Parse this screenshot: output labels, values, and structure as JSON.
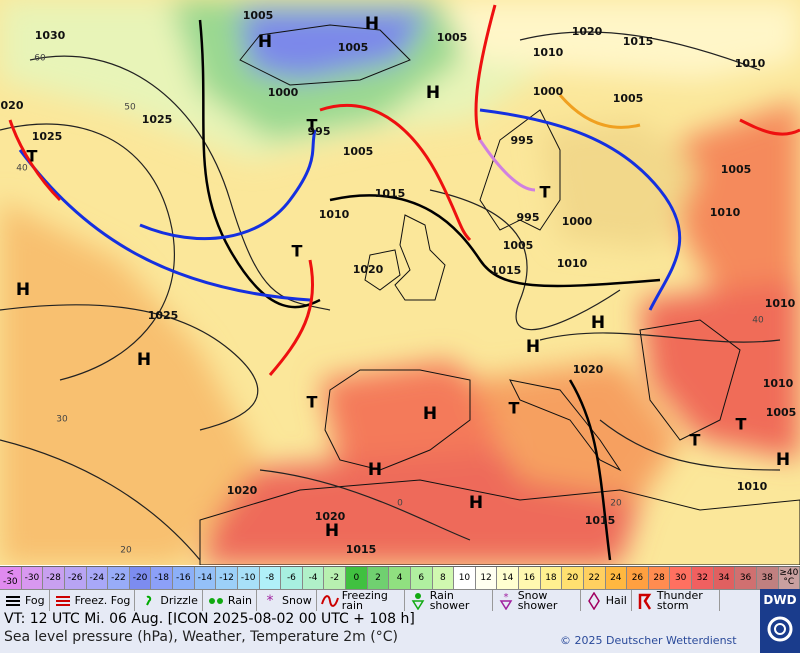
{
  "map": {
    "labels": [
      {
        "text": "1005",
        "kind": "iso"
      },
      {
        "text": "H",
        "kind": "hl"
      },
      {
        "text": "H",
        "kind": "hl"
      },
      {
        "text": "1005",
        "kind": "iso"
      },
      {
        "text": "1030",
        "kind": "iso"
      },
      {
        "text": "1020",
        "kind": "iso"
      },
      {
        "text": "1015",
        "kind": "iso"
      },
      {
        "text": "1010",
        "kind": "iso"
      },
      {
        "text": "1005",
        "kind": "iso"
      },
      {
        "text": "1000",
        "kind": "iso"
      },
      {
        "text": "H",
        "kind": "hl"
      },
      {
        "text": "1000",
        "kind": "iso"
      },
      {
        "text": "1005",
        "kind": "iso"
      },
      {
        "text": "1010",
        "kind": "iso"
      },
      {
        "text": "020",
        "kind": "iso"
      },
      {
        "text": "1025",
        "kind": "iso"
      },
      {
        "text": "1025",
        "kind": "iso"
      },
      {
        "text": "T",
        "kind": "tl"
      },
      {
        "text": "995",
        "kind": "iso"
      },
      {
        "text": "995",
        "kind": "iso"
      },
      {
        "text": "1005",
        "kind": "iso"
      },
      {
        "text": "T",
        "kind": "tl"
      },
      {
        "text": "1005",
        "kind": "iso"
      },
      {
        "text": "T",
        "kind": "tl"
      },
      {
        "text": "1015",
        "kind": "iso"
      },
      {
        "text": "1010",
        "kind": "iso"
      },
      {
        "text": "995",
        "kind": "iso"
      },
      {
        "text": "1000",
        "kind": "iso"
      },
      {
        "text": "1010",
        "kind": "iso"
      },
      {
        "text": "T",
        "kind": "tl"
      },
      {
        "text": "1005",
        "kind": "iso"
      },
      {
        "text": "1020",
        "kind": "iso"
      },
      {
        "text": "1015",
        "kind": "iso"
      },
      {
        "text": "1010",
        "kind": "iso"
      },
      {
        "text": "H",
        "kind": "hl"
      },
      {
        "text": "1025",
        "kind": "iso"
      },
      {
        "text": "H",
        "kind": "hl"
      },
      {
        "text": "1010",
        "kind": "iso"
      },
      {
        "text": "H",
        "kind": "hl"
      },
      {
        "text": "H",
        "kind": "hl"
      },
      {
        "text": "1020",
        "kind": "iso"
      },
      {
        "text": "1010",
        "kind": "iso"
      },
      {
        "text": "T",
        "kind": "tl"
      },
      {
        "text": "H",
        "kind": "hl"
      },
      {
        "text": "T",
        "kind": "tl"
      },
      {
        "text": "1005",
        "kind": "iso"
      },
      {
        "text": "T",
        "kind": "tl"
      },
      {
        "text": "T",
        "kind": "tl"
      },
      {
        "text": "H",
        "kind": "hl"
      },
      {
        "text": "H",
        "kind": "hl"
      },
      {
        "text": "1020",
        "kind": "iso"
      },
      {
        "text": "1010",
        "kind": "iso"
      },
      {
        "text": "H",
        "kind": "hl"
      },
      {
        "text": "1020",
        "kind": "iso"
      },
      {
        "text": "H",
        "kind": "hl"
      },
      {
        "text": "1015",
        "kind": "iso"
      },
      {
        "text": "1015",
        "kind": "iso"
      },
      {
        "text": "60",
        "kind": "gl"
      },
      {
        "text": "50",
        "kind": "gl"
      },
      {
        "text": "40",
        "kind": "gl"
      },
      {
        "text": "30",
        "kind": "gl"
      },
      {
        "text": "20",
        "kind": "gl"
      },
      {
        "text": "0",
        "kind": "gl"
      },
      {
        "text": "20",
        "kind": "gl"
      },
      {
        "text": "40",
        "kind": "gl"
      }
    ]
  },
  "temperature_scale": [
    {
      "label": "< -30",
      "color": "#e08af0"
    },
    {
      "label": "-30",
      "color": "#d898f0"
    },
    {
      "label": "-28",
      "color": "#c8a0f0"
    },
    {
      "label": "-26",
      "color": "#b8a4f4"
    },
    {
      "label": "-24",
      "color": "#a8a8f8"
    },
    {
      "label": "-22",
      "color": "#98acf8"
    },
    {
      "label": "-20",
      "color": "#7c8cf0"
    },
    {
      "label": "-18",
      "color": "#8ca0f8"
    },
    {
      "label": "-16",
      "color": "#8cb0f8"
    },
    {
      "label": "-14",
      "color": "#94c0f8"
    },
    {
      "label": "-12",
      "color": "#9cd0f8"
    },
    {
      "label": "-10",
      "color": "#a8e0f8"
    },
    {
      "label": "-8",
      "color": "#b0f0f8"
    },
    {
      "label": "-6",
      "color": "#a8f0e0"
    },
    {
      "label": "-4",
      "color": "#b0f0c8"
    },
    {
      "label": "-2",
      "color": "#b8f0b0"
    },
    {
      "label": "0",
      "color": "#40c040"
    },
    {
      "label": "2",
      "color": "#70d070"
    },
    {
      "label": "4",
      "color": "#90e080"
    },
    {
      "label": "6",
      "color": "#b0f0a0"
    },
    {
      "label": "8",
      "color": "#d0f8b0"
    },
    {
      "label": "10",
      "color": "#ffffff"
    },
    {
      "label": "12",
      "color": "#fffff0"
    },
    {
      "label": "14",
      "color": "#ffffd0"
    },
    {
      "label": "16",
      "color": "#fff8b0"
    },
    {
      "label": "18",
      "color": "#fff090"
    },
    {
      "label": "20",
      "color": "#ffe070"
    },
    {
      "label": "22",
      "color": "#ffd060"
    },
    {
      "label": "24",
      "color": "#ffb840"
    },
    {
      "label": "26",
      "color": "#ffa040"
    },
    {
      "label": "28",
      "color": "#ff8c50"
    },
    {
      "label": "30",
      "color": "#ff7060"
    },
    {
      "label": "32",
      "color": "#f06060"
    },
    {
      "label": "34",
      "color": "#e06060"
    },
    {
      "label": "36",
      "color": "#d07070"
    },
    {
      "label": "38",
      "color": "#c08080"
    },
    {
      "label": "≥40 °C",
      "color": "#c8a0a0"
    }
  ],
  "weather_legend": [
    "Fog",
    "Freez. Fog",
    "Drizzle",
    "Rain",
    "Snow",
    "Freezing rain",
    "Rain shower",
    "Snow shower",
    "Hail",
    "Thunder storm"
  ],
  "footer": {
    "valid_time": "VT: 12 UTC Mi.  06 Aug. [ICON 2025-08-02  00 UTC + 108 h]",
    "description": "Sea level pressure (hPa), Weather, Temperature 2m (°C)",
    "copyright": "© 2025 Deutscher Wetterdienst",
    "logo": "DWD"
  }
}
